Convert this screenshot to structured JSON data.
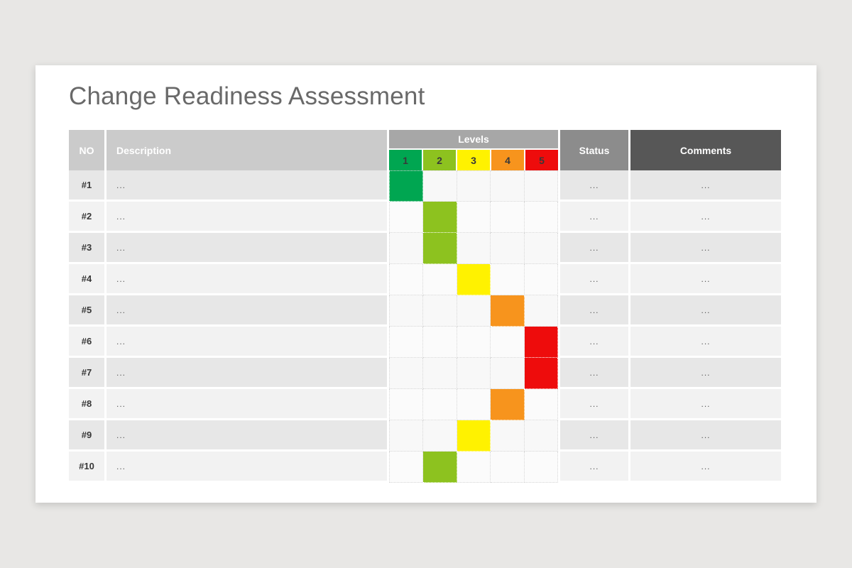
{
  "page": {
    "title": "Change Readiness Assessment"
  },
  "table": {
    "headers": {
      "no": "NO",
      "description": "Description",
      "levels": "Levels",
      "status": "Status",
      "comments": "Comments"
    },
    "level_scale": [
      {
        "label": "1",
        "color": "#00a651"
      },
      {
        "label": "2",
        "color": "#8dc21f"
      },
      {
        "label": "3",
        "color": "#fff200"
      },
      {
        "label": "4",
        "color": "#f7941d"
      },
      {
        "label": "5",
        "color": "#ee0c0c"
      }
    ],
    "rows": [
      {
        "no": "#1",
        "description": "...",
        "level": 1,
        "status": "...",
        "comments": "..."
      },
      {
        "no": "#2",
        "description": "...",
        "level": 2,
        "status": "...",
        "comments": "..."
      },
      {
        "no": "#3",
        "description": "...",
        "level": 2,
        "status": "...",
        "comments": "..."
      },
      {
        "no": "#4",
        "description": "...",
        "level": 3,
        "status": "...",
        "comments": "..."
      },
      {
        "no": "#5",
        "description": "...",
        "level": 4,
        "status": "...",
        "comments": "..."
      },
      {
        "no": "#6",
        "description": "...",
        "level": 5,
        "status": "...",
        "comments": "..."
      },
      {
        "no": "#7",
        "description": "...",
        "level": 5,
        "status": "...",
        "comments": "..."
      },
      {
        "no": "#8",
        "description": "...",
        "level": 4,
        "status": "...",
        "comments": "..."
      },
      {
        "no": "#9",
        "description": "...",
        "level": 3,
        "status": "...",
        "comments": "..."
      },
      {
        "no": "#10",
        "description": "...",
        "level": 2,
        "status": "...",
        "comments": "..."
      }
    ]
  },
  "colors": {
    "page_bg": "#e8e7e5",
    "card_bg": "#ffffff",
    "title_text": "#696969",
    "header_light": "#cbcbcb",
    "header_mid": "#a7a7a7",
    "header_status": "#8c8c8c",
    "header_dark": "#575757",
    "row_odd": "#e7e7e7",
    "row_even": "#f2f2f2"
  }
}
